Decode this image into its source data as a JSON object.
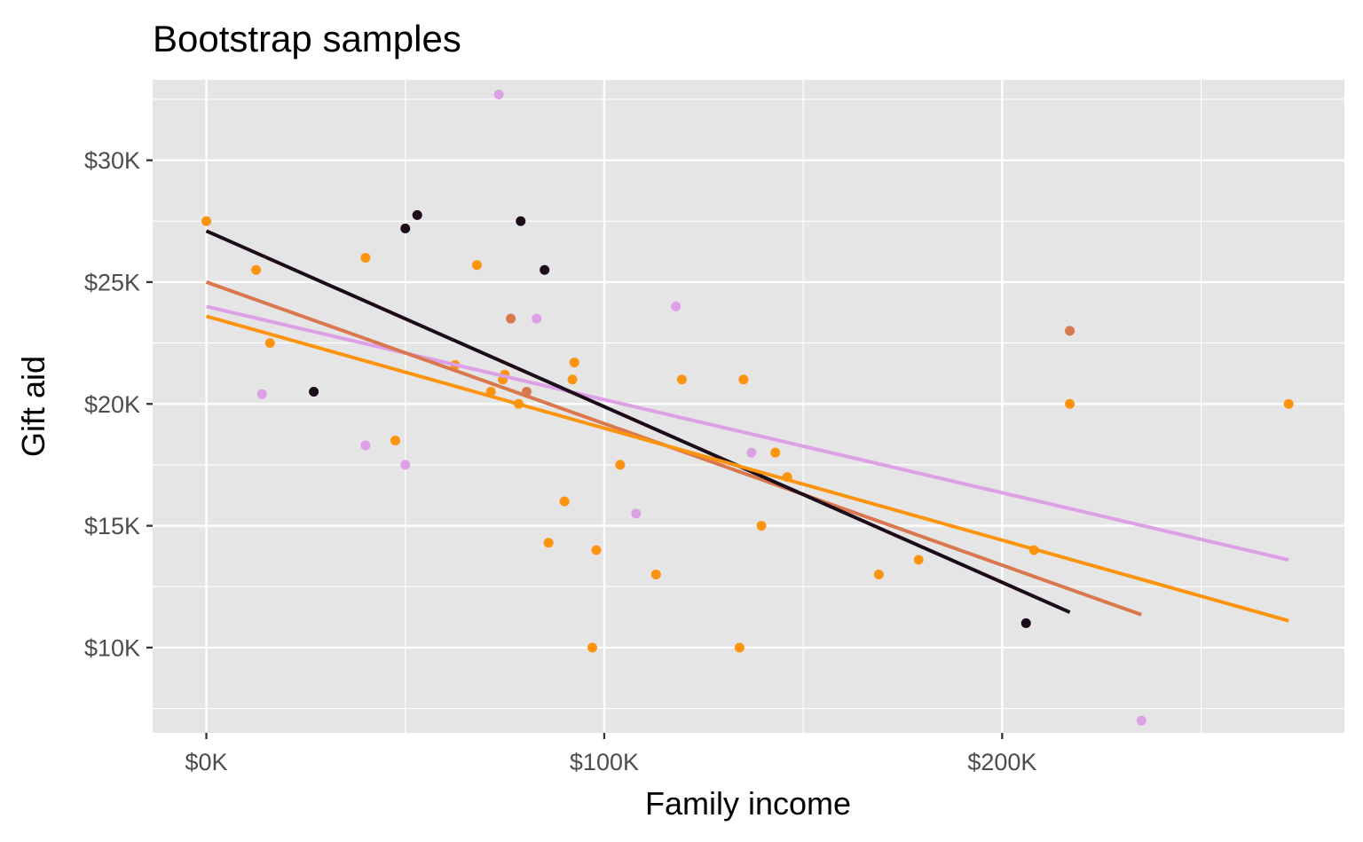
{
  "chart_data": {
    "type": "scatter",
    "title": "Bootstrap samples",
    "xlabel": "Family income",
    "ylabel": "Gift aid",
    "xlim": [
      -13500,
      286000
    ],
    "ylim": [
      6500,
      33300
    ],
    "x_ticks": [
      {
        "value": 0,
        "label": "$0K"
      },
      {
        "value": 100000,
        "label": "$100K"
      },
      {
        "value": 200000,
        "label": "$200K"
      }
    ],
    "y_ticks": [
      {
        "value": 10000,
        "label": "$10K"
      },
      {
        "value": 15000,
        "label": "$15K"
      },
      {
        "value": 20000,
        "label": "$20K"
      },
      {
        "value": 25000,
        "label": "$25K"
      },
      {
        "value": 30000,
        "label": "$30K"
      }
    ],
    "grid": true,
    "background": "#e5e5e5",
    "grid_color": "#ffffff",
    "legend": "none",
    "series": [
      {
        "color": "#dd9fe5",
        "points": [
          [
            0,
            27500
          ],
          [
            14000,
            20400
          ],
          [
            40000,
            18300
          ],
          [
            50000,
            17500
          ],
          [
            53000,
            27750
          ],
          [
            73500,
            32700
          ],
          [
            83000,
            23500
          ],
          [
            90000,
            16000
          ],
          [
            104000,
            17500
          ],
          [
            108000,
            15500
          ],
          [
            113000,
            13000
          ],
          [
            118000,
            24000
          ],
          [
            137000,
            18000
          ],
          [
            235000,
            7000
          ]
        ],
        "line": {
          "x0": 0,
          "y0": 24000,
          "x1": 272000,
          "y1": 13600
        }
      },
      {
        "color": "#d9784e",
        "points": [
          [
            76500,
            23500
          ],
          [
            80500,
            20500
          ],
          [
            217000,
            23000
          ]
        ],
        "line": {
          "x0": 0,
          "y0": 25000,
          "x1": 235000,
          "y1": 11350
        }
      },
      {
        "color": "#1c0b19",
        "points": [
          [
            27000,
            20500
          ],
          [
            50000,
            27200
          ],
          [
            53000,
            27750
          ],
          [
            79000,
            27500
          ],
          [
            85000,
            25500
          ],
          [
            206000,
            11000
          ]
        ],
        "line": {
          "x0": 0,
          "y0": 27100,
          "x1": 217000,
          "y1": 11450
        }
      },
      {
        "color": "#fc940f",
        "points": [
          [
            0,
            27500
          ],
          [
            12500,
            25500
          ],
          [
            16000,
            22500
          ],
          [
            40000,
            26000
          ],
          [
            47500,
            18500
          ],
          [
            62500,
            21600
          ],
          [
            68000,
            25700
          ],
          [
            71500,
            20500
          ],
          [
            74500,
            21000
          ],
          [
            75000,
            21200
          ],
          [
            78500,
            20000
          ],
          [
            86000,
            14300
          ],
          [
            90000,
            16000
          ],
          [
            92000,
            21000
          ],
          [
            92500,
            21700
          ],
          [
            97000,
            10000
          ],
          [
            98000,
            14000
          ],
          [
            104000,
            17500
          ],
          [
            113000,
            13000
          ],
          [
            119500,
            21000
          ],
          [
            134000,
            10000
          ],
          [
            135000,
            21000
          ],
          [
            139500,
            15000
          ],
          [
            143000,
            18000
          ],
          [
            146000,
            17000
          ],
          [
            169000,
            13000
          ],
          [
            179000,
            13600
          ],
          [
            208000,
            14000
          ],
          [
            217000,
            20000
          ],
          [
            272000,
            20000
          ]
        ],
        "line": {
          "x0": 0,
          "y0": 23600,
          "x1": 272000,
          "y1": 11100
        }
      }
    ]
  }
}
